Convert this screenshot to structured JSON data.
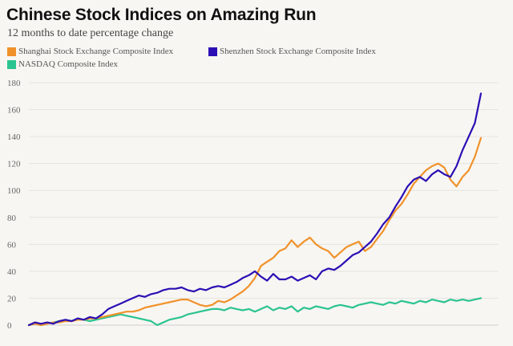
{
  "chart_data": {
    "type": "line",
    "title": "Chinese Stock Indices on Amazing Run",
    "subtitle": "12 months to date percentage change",
    "xlabel": "",
    "ylabel": "",
    "ylim": [
      0,
      180
    ],
    "yticks": [
      0,
      20,
      40,
      60,
      80,
      100,
      120,
      140,
      160,
      180
    ],
    "grid": true,
    "legend_position": "top-left",
    "series": [
      {
        "name": "Shanghai Stock Exchange Composite Index",
        "color": "#f0922b",
        "values": [
          0,
          1,
          0,
          1,
          2,
          2,
          3,
          3,
          4,
          4,
          5,
          5,
          6,
          7,
          8,
          9,
          10,
          10,
          11,
          13,
          14,
          15,
          16,
          17,
          18,
          19,
          19,
          17,
          15,
          14,
          15,
          18,
          17,
          19,
          22,
          25,
          29,
          35,
          44,
          47,
          50,
          55,
          57,
          63,
          58,
          62,
          65,
          60,
          57,
          55,
          50,
          54,
          58,
          60,
          62,
          55,
          58,
          64,
          70,
          78,
          85,
          90,
          97,
          105,
          110,
          115,
          118,
          120,
          117,
          108,
          103,
          110,
          115,
          125,
          139
        ]
      },
      {
        "name": "Shenzhen Stock Exchange Composite Index",
        "color": "#2b0fb5",
        "values": [
          0,
          2,
          1,
          2,
          1,
          3,
          4,
          3,
          5,
          4,
          6,
          5,
          8,
          12,
          14,
          16,
          18,
          20,
          22,
          21,
          23,
          24,
          26,
          27,
          27,
          28,
          26,
          25,
          27,
          26,
          28,
          29,
          28,
          30,
          32,
          35,
          37,
          40,
          36,
          33,
          38,
          34,
          34,
          36,
          33,
          35,
          37,
          34,
          40,
          42,
          41,
          44,
          48,
          52,
          54,
          58,
          62,
          68,
          75,
          80,
          88,
          95,
          103,
          108,
          110,
          107,
          112,
          115,
          112,
          110,
          118,
          130,
          140,
          150,
          172
        ]
      },
      {
        "name": "NASDAQ Composite Index",
        "color": "#2bc490",
        "values": [
          0,
          1,
          0,
          1,
          2,
          3,
          4,
          3,
          5,
          4,
          3,
          4,
          5,
          6,
          7,
          8,
          7,
          6,
          5,
          4,
          3,
          0,
          2,
          4,
          5,
          6,
          8,
          9,
          10,
          11,
          12,
          12,
          11,
          13,
          12,
          11,
          12,
          10,
          12,
          14,
          11,
          13,
          12,
          14,
          10,
          13,
          12,
          14,
          13,
          12,
          14,
          15,
          14,
          13,
          15,
          16,
          17,
          16,
          15,
          17,
          16,
          18,
          17,
          16,
          18,
          17,
          19,
          18,
          17,
          19,
          18,
          19,
          18,
          19,
          20
        ]
      }
    ]
  }
}
